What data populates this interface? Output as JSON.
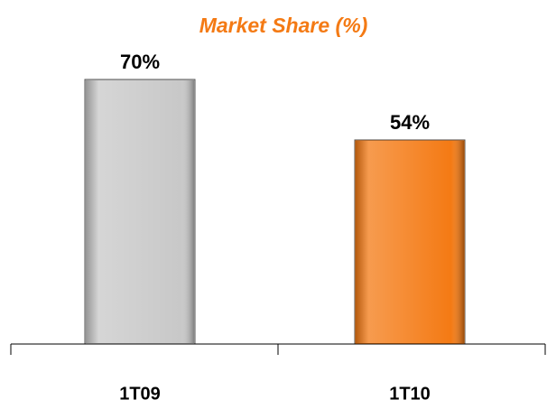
{
  "chart_data": {
    "type": "bar",
    "title": "Market Share (%)",
    "categories": [
      "1T09",
      "1T10"
    ],
    "values": [
      70,
      54
    ],
    "value_labels": [
      "70%",
      "54%"
    ],
    "colors": [
      "#c8c8c8",
      "#f47a14"
    ]
  }
}
